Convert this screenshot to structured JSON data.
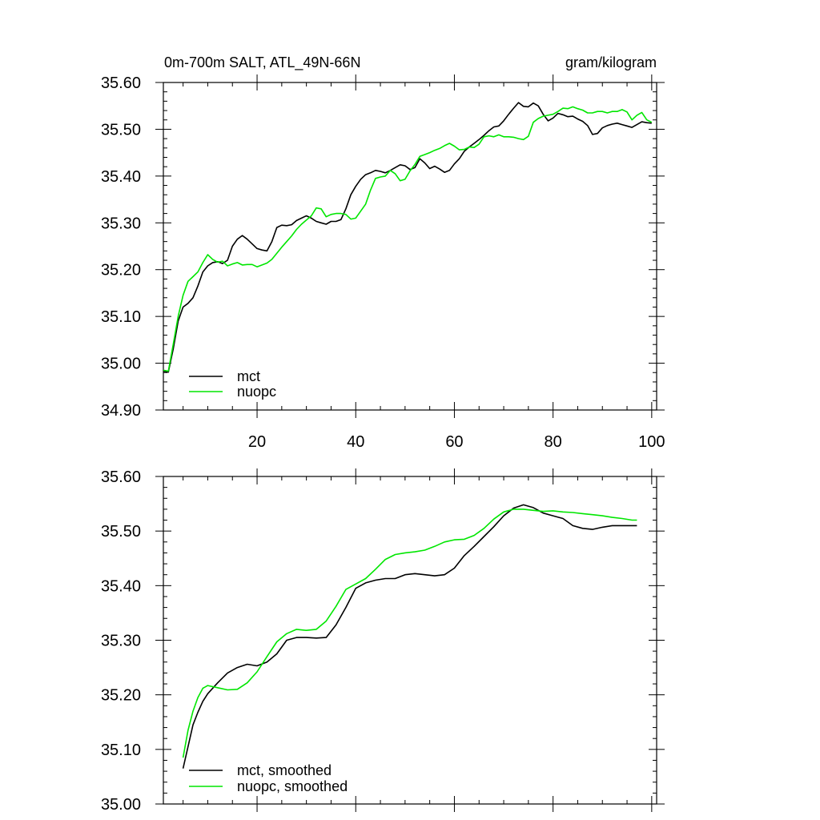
{
  "chart_data": [
    {
      "type": "line",
      "title": "0m-700m SALT, ATL_49N-66N",
      "units": "gram/kilogram",
      "xlim": [
        1,
        101
      ],
      "ylim": [
        34.9,
        35.6
      ],
      "xticks": [
        20,
        40,
        60,
        80,
        100
      ],
      "xtick_labels": [
        "20",
        "40",
        "60",
        "80",
        "100"
      ],
      "yticks": [
        34.9,
        35.0,
        35.1,
        35.2,
        35.3,
        35.4,
        35.5,
        35.6
      ],
      "ytick_labels": [
        "34.90",
        "35.00",
        "35.10",
        "35.20",
        "35.30",
        "35.40",
        "35.50",
        "35.60"
      ],
      "legend_position": "bottom-left",
      "grid": false,
      "series": [
        {
          "name": "mct",
          "color": "#000000",
          "x": [
            1,
            2,
            3,
            4,
            5,
            6,
            7,
            8,
            9,
            10,
            11,
            12,
            13,
            14,
            15,
            16,
            17,
            18,
            19,
            20,
            21,
            22,
            23,
            24,
            25,
            26,
            27,
            28,
            29,
            30,
            31,
            32,
            33,
            34,
            35,
            36,
            37,
            38,
            39,
            40,
            41,
            42,
            43,
            44,
            45,
            46,
            47,
            48,
            49,
            50,
            51,
            52,
            53,
            54,
            55,
            56,
            57,
            58,
            59,
            60,
            61,
            62,
            63,
            64,
            65,
            66,
            67,
            68,
            69,
            70,
            71,
            72,
            73,
            74,
            75,
            76,
            77,
            78,
            79,
            80,
            81,
            82,
            83,
            84,
            85,
            86,
            87,
            88,
            89,
            90,
            91,
            92,
            93,
            94,
            95,
            96,
            97,
            98,
            99,
            100
          ],
          "values": [
            34.983,
            34.981,
            35.03,
            35.09,
            35.12,
            35.128,
            35.14,
            35.165,
            35.195,
            35.208,
            35.215,
            35.217,
            35.213,
            35.22,
            35.25,
            35.265,
            35.273,
            35.265,
            35.255,
            35.245,
            35.242,
            35.24,
            35.26,
            35.29,
            35.295,
            35.294,
            35.296,
            35.305,
            35.31,
            35.315,
            35.31,
            35.303,
            35.3,
            35.297,
            35.303,
            35.303,
            35.307,
            35.33,
            35.36,
            35.378,
            35.393,
            35.403,
            35.407,
            35.412,
            35.41,
            35.407,
            35.412,
            35.418,
            35.424,
            35.422,
            35.414,
            35.418,
            35.437,
            35.428,
            35.416,
            35.421,
            35.415,
            35.408,
            35.412,
            35.426,
            35.437,
            35.453,
            35.462,
            35.47,
            35.478,
            35.487,
            35.497,
            35.505,
            35.507,
            35.518,
            35.532,
            35.545,
            35.557,
            35.549,
            35.548,
            35.556,
            35.55,
            35.532,
            35.518,
            35.524,
            35.534,
            35.531,
            35.527,
            35.528,
            35.522,
            35.517,
            35.508,
            35.489,
            35.491,
            35.503,
            35.508,
            35.511,
            35.513,
            35.51,
            35.507,
            35.504,
            35.51,
            35.516,
            35.514,
            35.513
          ]
        },
        {
          "name": "nuopc",
          "color": "#00e600",
          "x": [
            1,
            2,
            3,
            4,
            5,
            6,
            7,
            8,
            9,
            10,
            11,
            12,
            13,
            14,
            15,
            16,
            17,
            18,
            19,
            20,
            21,
            22,
            23,
            24,
            25,
            26,
            27,
            28,
            29,
            30,
            31,
            32,
            33,
            34,
            35,
            36,
            37,
            38,
            39,
            40,
            41,
            42,
            43,
            44,
            45,
            46,
            47,
            48,
            49,
            50,
            51,
            52,
            53,
            54,
            55,
            56,
            57,
            58,
            59,
            60,
            61,
            62,
            63,
            64,
            65,
            66,
            67,
            68,
            69,
            70,
            71,
            72,
            73,
            74,
            75,
            76,
            77,
            78,
            79,
            80,
            81,
            82,
            83,
            84,
            85,
            86,
            87,
            88,
            89,
            90,
            91,
            92,
            93,
            94,
            95,
            96,
            97,
            98,
            99,
            100
          ],
          "values": [
            34.985,
            34.983,
            35.04,
            35.1,
            35.145,
            35.175,
            35.185,
            35.195,
            35.215,
            35.232,
            35.222,
            35.216,
            35.218,
            35.208,
            35.212,
            35.215,
            35.21,
            35.211,
            35.211,
            35.206,
            35.21,
            35.214,
            35.222,
            35.235,
            35.248,
            35.26,
            35.272,
            35.286,
            35.297,
            35.306,
            35.315,
            35.332,
            35.33,
            35.313,
            35.318,
            35.32,
            35.32,
            35.318,
            35.308,
            35.31,
            35.325,
            35.34,
            35.37,
            35.395,
            35.398,
            35.4,
            35.412,
            35.405,
            35.39,
            35.393,
            35.411,
            35.425,
            35.442,
            35.446,
            35.45,
            35.455,
            35.459,
            35.465,
            35.47,
            35.464,
            35.456,
            35.457,
            35.462,
            35.461,
            35.468,
            35.484,
            35.486,
            35.484,
            35.488,
            35.484,
            35.484,
            35.483,
            35.48,
            35.478,
            35.485,
            35.515,
            35.523,
            35.528,
            35.53,
            35.532,
            35.538,
            35.545,
            35.544,
            35.548,
            35.544,
            35.541,
            35.535,
            35.535,
            35.538,
            35.538,
            35.535,
            35.538,
            35.538,
            35.542,
            35.537,
            35.52,
            35.53,
            35.536,
            35.52,
            35.515
          ]
        }
      ]
    },
    {
      "type": "line",
      "title": "",
      "xlim": [
        1,
        101
      ],
      "ylim": [
        35.0,
        35.6
      ],
      "xticks": [
        20,
        40,
        60,
        80,
        100
      ],
      "xtick_labels": [],
      "yticks": [
        35.0,
        35.1,
        35.2,
        35.3,
        35.4,
        35.5,
        35.6
      ],
      "ytick_labels": [
        "35.00",
        "35.10",
        "35.20",
        "35.30",
        "35.40",
        "35.50",
        "35.60"
      ],
      "legend_position": "bottom-left",
      "grid": false,
      "series": [
        {
          "name": "mct, smoothed",
          "color": "#000000",
          "x": [
            5,
            6,
            7,
            8,
            9,
            10,
            12,
            14,
            16,
            18,
            20,
            22,
            24,
            26,
            28,
            30,
            32,
            34,
            36,
            38,
            40,
            42,
            44,
            46,
            48,
            50,
            52,
            54,
            56,
            58,
            60,
            62,
            64,
            66,
            68,
            70,
            72,
            74,
            76,
            77,
            78,
            80,
            82,
            84,
            86,
            88,
            90,
            92,
            94,
            96,
            97
          ],
          "values": [
            35.065,
            35.105,
            35.145,
            35.168,
            35.188,
            35.202,
            35.222,
            35.24,
            35.25,
            35.256,
            35.253,
            35.26,
            35.275,
            35.3,
            35.305,
            35.305,
            35.304,
            35.305,
            35.328,
            35.36,
            35.395,
            35.405,
            35.41,
            35.413,
            35.413,
            35.42,
            35.422,
            35.42,
            35.418,
            35.42,
            35.432,
            35.455,
            35.472,
            35.49,
            35.508,
            35.528,
            35.542,
            35.548,
            35.543,
            35.538,
            35.533,
            35.528,
            35.523,
            35.51,
            35.505,
            35.503,
            35.507,
            35.51,
            35.51,
            35.51,
            35.51
          ]
        },
        {
          "name": "nuopc, smoothed",
          "color": "#00e600",
          "x": [
            5,
            6,
            7,
            8,
            9,
            10,
            12,
            14,
            16,
            18,
            20,
            22,
            24,
            26,
            28,
            30,
            32,
            34,
            36,
            38,
            40,
            42,
            44,
            46,
            48,
            50,
            52,
            54,
            56,
            58,
            60,
            62,
            64,
            66,
            68,
            70,
            72,
            74,
            76,
            78,
            80,
            82,
            84,
            86,
            88,
            90,
            92,
            94,
            96,
            97
          ],
          "values": [
            35.085,
            35.135,
            35.17,
            35.195,
            35.212,
            35.217,
            35.213,
            35.209,
            35.21,
            35.222,
            35.242,
            35.27,
            35.297,
            35.312,
            35.32,
            35.318,
            35.32,
            35.335,
            35.362,
            35.393,
            35.403,
            35.413,
            35.43,
            35.448,
            35.457,
            35.46,
            35.462,
            35.465,
            35.472,
            35.48,
            35.484,
            35.485,
            35.492,
            35.505,
            35.522,
            35.535,
            35.54,
            35.54,
            35.538,
            35.536,
            35.537,
            35.535,
            35.534,
            35.532,
            35.53,
            35.528,
            35.525,
            35.523,
            35.52,
            35.52
          ]
        }
      ]
    }
  ]
}
